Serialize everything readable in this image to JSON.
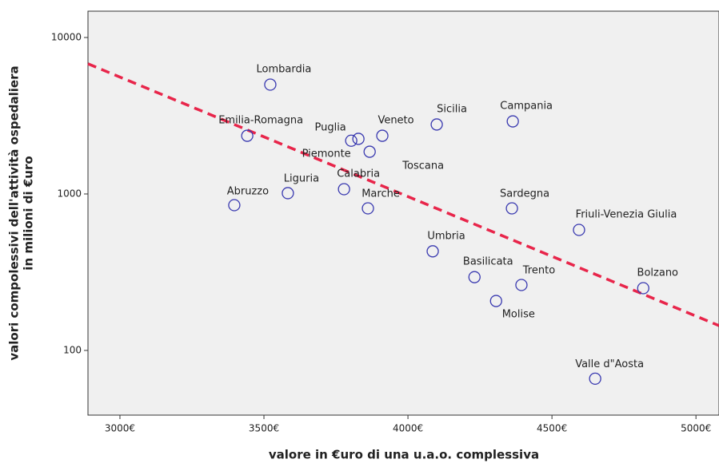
{
  "chart_data": {
    "type": "scatter",
    "x_label": "valore in €uro di una u.a.o. complessiva",
    "y_label": [
      "valori compolessivi dell'attività ospedaliera",
      "in  milioni di €uro"
    ],
    "yscale": "log",
    "xlim": [
      2889,
      5080
    ],
    "ylim": [
      38.6,
      14730
    ],
    "xticks": [
      {
        "value": 3000,
        "label": "3000€"
      },
      {
        "value": 3500,
        "label": "3500€"
      },
      {
        "value": 4000,
        "label": "4000€"
      },
      {
        "value": 4500,
        "label": "4500€"
      },
      {
        "value": 5000,
        "label": "5000€"
      }
    ],
    "yticks": [
      100,
      1000,
      10000
    ],
    "point_color": "#3a3ab0",
    "background": "#f0f0f0",
    "labels": [
      "Lombardia",
      "Emilia-Romagna",
      "Puglia",
      "Piemonte",
      "Veneto",
      "Sicilia",
      "Campania",
      "Toscana",
      "Calabria",
      "Liguria",
      "Abruzzo",
      "Marche",
      "Sardegna",
      "Friuli-Venezia Giulia",
      "Umbria",
      "Basilicata",
      "Trento",
      "Molise",
      "Bolzano",
      "Valle d\"Aosta"
    ],
    "x": [
      3522,
      3442,
      3828,
      3803,
      3911,
      4100,
      4364,
      3867,
      3778,
      3583,
      3397,
      3861,
      4361,
      4594,
      4086,
      4231,
      4394,
      4306,
      4817,
      4650
    ],
    "y": [
      5000,
      2355,
      2250,
      2190,
      2355,
      2780,
      2910,
      1862,
      1073,
      1012,
      848,
      809,
      809,
      589,
      430,
      294,
      262,
      207,
      250,
      66
    ],
    "fit_line": {
      "x": [
        2889,
        5080
      ],
      "y": [
        6790,
        144
      ],
      "color": "#e8254a"
    }
  }
}
